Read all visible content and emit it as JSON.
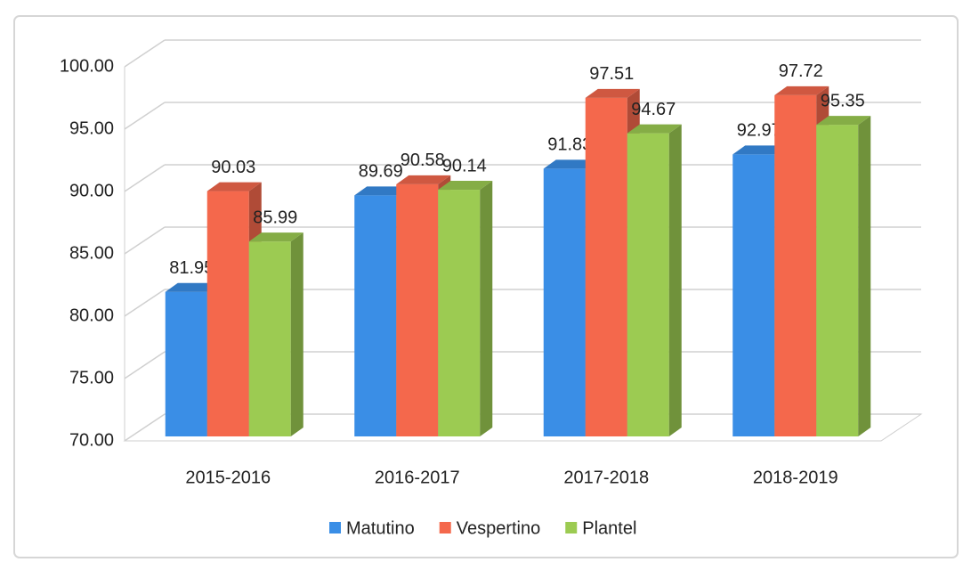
{
  "chart_data": {
    "type": "bar3d",
    "categories": [
      "2015-2016",
      "2016-2017",
      "2017-2018",
      "2018-2019"
    ],
    "series": [
      {
        "name": "Matutino",
        "color": "#3a8ee6",
        "values": [
          81.95,
          89.69,
          91.83,
          92.97
        ]
      },
      {
        "name": "Vespertino",
        "color": "#f4684c",
        "values": [
          90.03,
          90.58,
          97.51,
          97.72
        ]
      },
      {
        "name": "Plantel",
        "color": "#9ccb52",
        "values": [
          85.99,
          90.14,
          94.67,
          95.35
        ]
      }
    ],
    "ylim": [
      70,
      100
    ],
    "yticks": [
      {
        "value": 70,
        "label": "70.00"
      },
      {
        "value": 75,
        "label": "75.00"
      },
      {
        "value": 80,
        "label": "80.00"
      },
      {
        "value": 85,
        "label": "85.00"
      },
      {
        "value": 90,
        "label": "90.00"
      },
      {
        "value": 95,
        "label": "95.00"
      },
      {
        "value": 100,
        "label": "100.00"
      }
    ],
    "grid": true,
    "legend": "bottom"
  }
}
